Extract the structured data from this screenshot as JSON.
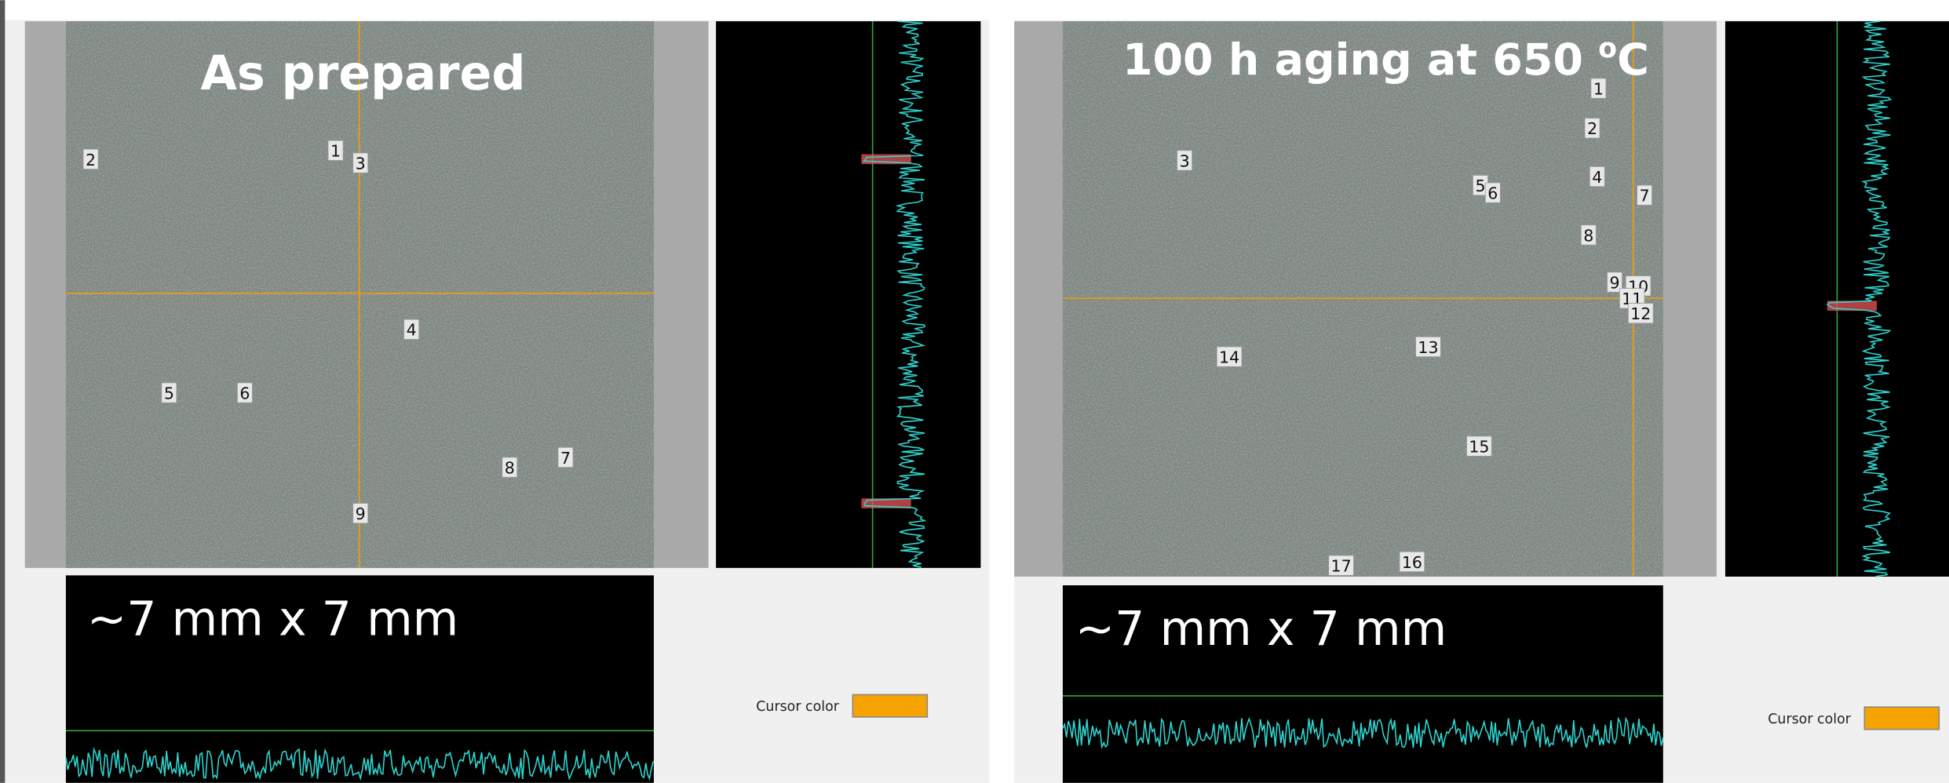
{
  "panels": [
    {
      "title": "As prepared",
      "size_label": "~7 mm x 7 mm",
      "cursor_label": "Cursor color",
      "markers": [
        "1",
        "2",
        "3",
        "4",
        "5",
        "6",
        "7",
        "8",
        "9"
      ]
    },
    {
      "title": {
        "text": "100 h aging at 650 ",
        "sup": "o",
        "unit": "C"
      },
      "size_label": "~7 mm x 7 mm",
      "cursor_label": "Cursor color",
      "markers": [
        "1",
        "2",
        "3",
        "4",
        "5",
        "6",
        "7",
        "8",
        "9",
        "10",
        "11",
        "12",
        "13",
        "14",
        "15",
        "16",
        "17"
      ]
    }
  ]
}
